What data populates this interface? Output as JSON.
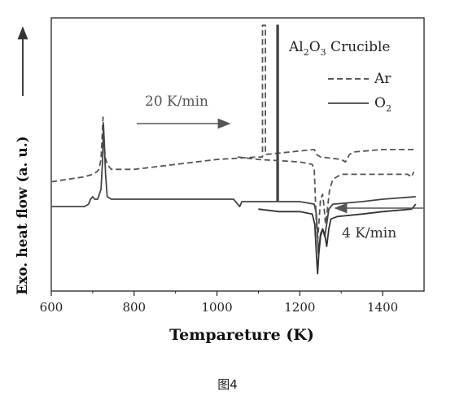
{
  "chart_data": {
    "type": "line",
    "xlabel": "Tempareture (K)",
    "ylabel": "Exo. heat flow (a. u.)",
    "xlim": [
      600,
      1500
    ],
    "x_ticks": [
      "600",
      "800",
      "1000",
      "1200",
      "1400"
    ],
    "y_ticks_shown": false,
    "legend": {
      "title": "Al2O3 Crucible",
      "title_parts": [
        "Al",
        "2",
        "O",
        "3",
        " Crucible"
      ],
      "placement": "top-right",
      "entries": [
        {
          "label": "Ar",
          "style": "dashed"
        },
        {
          "label": "O2",
          "label_parts": [
            "O",
            "2"
          ],
          "style": "solid"
        }
      ]
    },
    "annotations": [
      {
        "text": "20 K/min",
        "arrow": "right",
        "applies_to": "upper curves"
      },
      {
        "text": "4 K/min",
        "arrow": "left",
        "applies_to": "lower curves"
      }
    ],
    "series": [
      {
        "name": "Ar",
        "rate": "20 K/min",
        "style": "dashed",
        "color": "#555555",
        "points": [
          [
            600,
            0.79
          ],
          [
            640,
            0.8
          ],
          [
            680,
            0.81
          ],
          [
            700,
            0.82
          ],
          [
            710,
            0.83
          ],
          [
            715,
            0.84
          ],
          [
            720,
            0.88
          ],
          [
            723,
            0.98
          ],
          [
            725,
            1.05
          ],
          [
            727,
            0.97
          ],
          [
            730,
            0.89
          ],
          [
            735,
            0.86
          ],
          [
            745,
            0.84
          ],
          [
            800,
            0.84
          ],
          [
            900,
            0.86
          ],
          [
            1000,
            0.88
          ],
          [
            1100,
            0.89
          ],
          [
            1110,
            0.89
          ],
          [
            1110,
            1.42
          ],
          [
            1117,
            1.42
          ],
          [
            1117,
            0.9
          ],
          [
            1235,
            0.92
          ],
          [
            1238,
            0.91
          ],
          [
            1240,
            0.9
          ],
          [
            1250,
            0.89
          ],
          [
            1300,
            0.88
          ],
          [
            1310,
            0.87
          ],
          [
            1320,
            0.9
          ],
          [
            1330,
            0.91
          ],
          [
            1400,
            0.92
          ],
          [
            1480,
            0.92
          ]
        ]
      },
      {
        "name": "O2",
        "rate": "20 K/min",
        "style": "solid",
        "color": "#444444",
        "points": [
          [
            600,
            0.69
          ],
          [
            650,
            0.69
          ],
          [
            680,
            0.69
          ],
          [
            690,
            0.7
          ],
          [
            695,
            0.72
          ],
          [
            700,
            0.73
          ],
          [
            705,
            0.72
          ],
          [
            712,
            0.72
          ],
          [
            720,
            0.76
          ],
          [
            724,
            0.88
          ],
          [
            726,
            1.02
          ],
          [
            728,
            0.95
          ],
          [
            731,
            0.82
          ],
          [
            735,
            0.73
          ],
          [
            745,
            0.72
          ],
          [
            800,
            0.72
          ],
          [
            900,
            0.72
          ],
          [
            1000,
            0.72
          ],
          [
            1040,
            0.72
          ],
          [
            1050,
            0.7
          ],
          [
            1055,
            0.69
          ],
          [
            1060,
            0.71
          ],
          [
            1070,
            0.71
          ],
          [
            1100,
            0.71
          ],
          [
            1145,
            0.71
          ],
          [
            1145,
            1.42
          ],
          [
            1148,
            1.42
          ],
          [
            1148,
            0.71
          ],
          [
            1200,
            0.71
          ],
          [
            1235,
            0.7
          ],
          [
            1240,
            0.66
          ],
          [
            1245,
            0.5
          ],
          [
            1250,
            0.58
          ],
          [
            1255,
            0.6
          ],
          [
            1260,
            0.57
          ],
          [
            1265,
            0.62
          ],
          [
            1270,
            0.68
          ],
          [
            1280,
            0.7
          ],
          [
            1350,
            0.71
          ],
          [
            1400,
            0.72
          ],
          [
            1480,
            0.73
          ]
        ]
      },
      {
        "name": "Ar",
        "rate": "4 K/min",
        "style": "dashed",
        "color": "#555555",
        "points": [
          [
            1050,
            0.89
          ],
          [
            1100,
            0.88
          ],
          [
            1200,
            0.87
          ],
          [
            1230,
            0.86
          ],
          [
            1235,
            0.84
          ],
          [
            1240,
            0.62
          ],
          [
            1243,
            0.55
          ],
          [
            1246,
            0.62
          ],
          [
            1250,
            0.72
          ],
          [
            1255,
            0.74
          ],
          [
            1258,
            0.7
          ],
          [
            1262,
            0.62
          ],
          [
            1266,
            0.67
          ],
          [
            1272,
            0.76
          ],
          [
            1280,
            0.8
          ],
          [
            1300,
            0.82
          ],
          [
            1350,
            0.82
          ],
          [
            1400,
            0.82
          ],
          [
            1460,
            0.82
          ],
          [
            1470,
            0.81
          ],
          [
            1475,
            0.83
          ]
        ]
      },
      {
        "name": "O2",
        "rate": "4 K/min",
        "style": "solid",
        "color": "#333333",
        "points": [
          [
            1100,
            0.68
          ],
          [
            1150,
            0.67
          ],
          [
            1200,
            0.67
          ],
          [
            1230,
            0.66
          ],
          [
            1236,
            0.62
          ],
          [
            1240,
            0.5
          ],
          [
            1243,
            0.42
          ],
          [
            1246,
            0.5
          ],
          [
            1250,
            0.57
          ],
          [
            1255,
            0.6
          ],
          [
            1260,
            0.58
          ],
          [
            1265,
            0.53
          ],
          [
            1270,
            0.6
          ],
          [
            1275,
            0.64
          ],
          [
            1290,
            0.65
          ],
          [
            1350,
            0.66
          ],
          [
            1400,
            0.67
          ],
          [
            1470,
            0.68
          ],
          [
            1480,
            0.7
          ]
        ]
      }
    ]
  },
  "caption": "图4"
}
